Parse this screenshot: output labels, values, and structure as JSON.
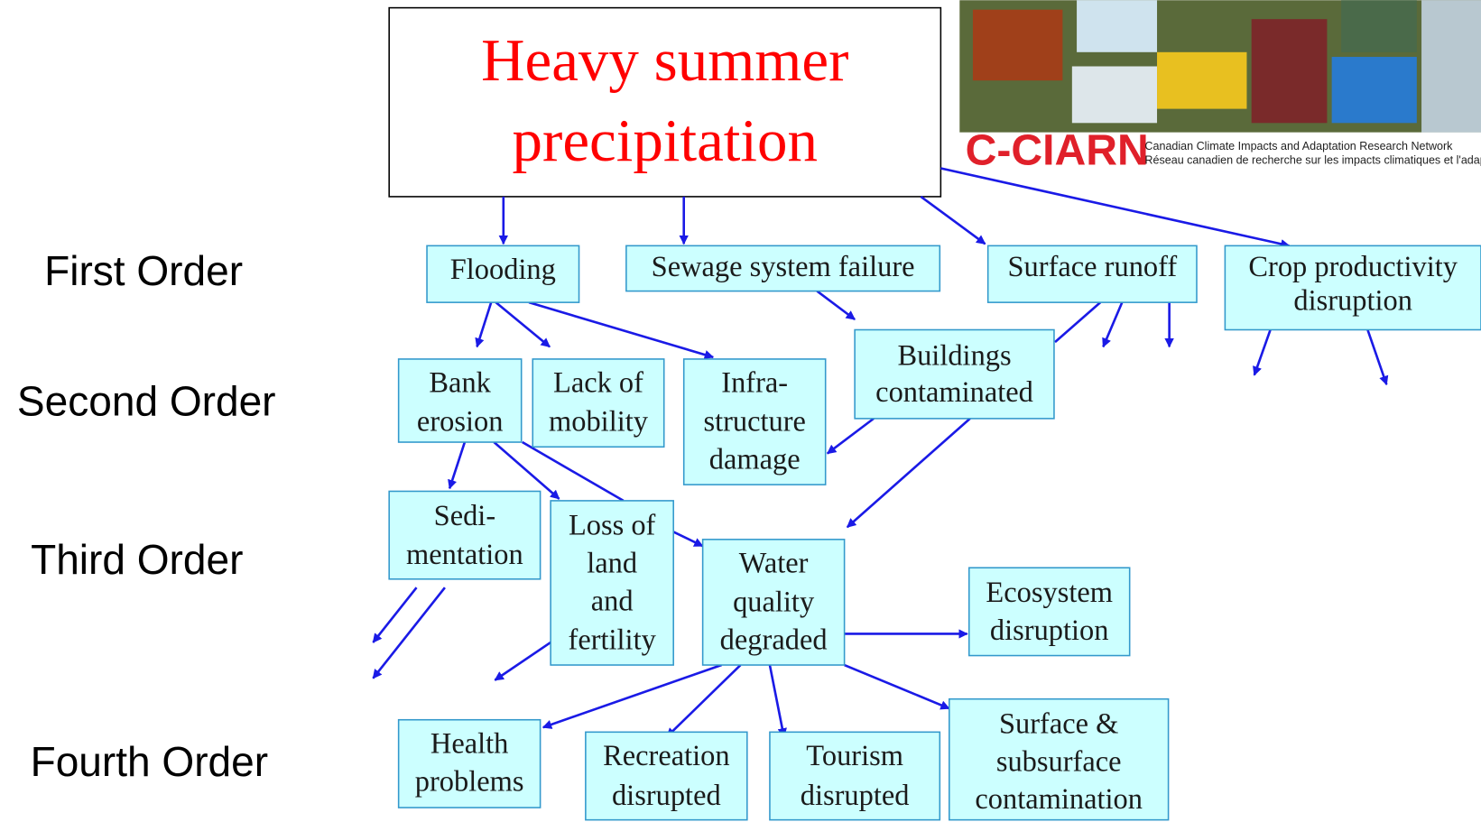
{
  "title": {
    "lines": [
      "Heavy summer",
      "precipitation"
    ]
  },
  "orders": [
    "First Order",
    "Second Order",
    "Third Order",
    "Fourth Order"
  ],
  "logo": {
    "name": "C-CIARN",
    "line_en": "Canadian Climate Impacts and Adaptation Research Network",
    "line_fr": "Réseau canadien de recherche sur les impacts climatiques et l'adaptat"
  },
  "nodes": [
    {
      "lines": [
        "Flooding"
      ]
    },
    {
      "lines": [
        "Sewage system failure"
      ]
    },
    {
      "lines": [
        "Surface runoff"
      ]
    },
    {
      "lines": [
        "Crop productivity",
        "disruption"
      ]
    },
    {
      "lines": [
        "Bank",
        "erosion"
      ]
    },
    {
      "lines": [
        "Lack of",
        "mobility"
      ]
    },
    {
      "lines": [
        "Infra-",
        "structure",
        "damage"
      ]
    },
    {
      "lines": [
        "Buildings",
        "contaminated"
      ]
    },
    {
      "lines": [
        "Sedi-",
        "mentation"
      ]
    },
    {
      "lines": [
        "Loss of",
        "land",
        "and",
        "fertility"
      ]
    },
    {
      "lines": [
        "Water",
        "quality",
        "degraded"
      ]
    },
    {
      "lines": [
        "Ecosystem",
        "disruption"
      ]
    },
    {
      "lines": [
        "Health",
        "problems"
      ]
    },
    {
      "lines": [
        "Recreation",
        "disrupted"
      ]
    },
    {
      "lines": [
        "Tourism",
        "disrupted"
      ]
    },
    {
      "lines": [
        "Surface &",
        "subsurface",
        "contamination"
      ]
    }
  ]
}
